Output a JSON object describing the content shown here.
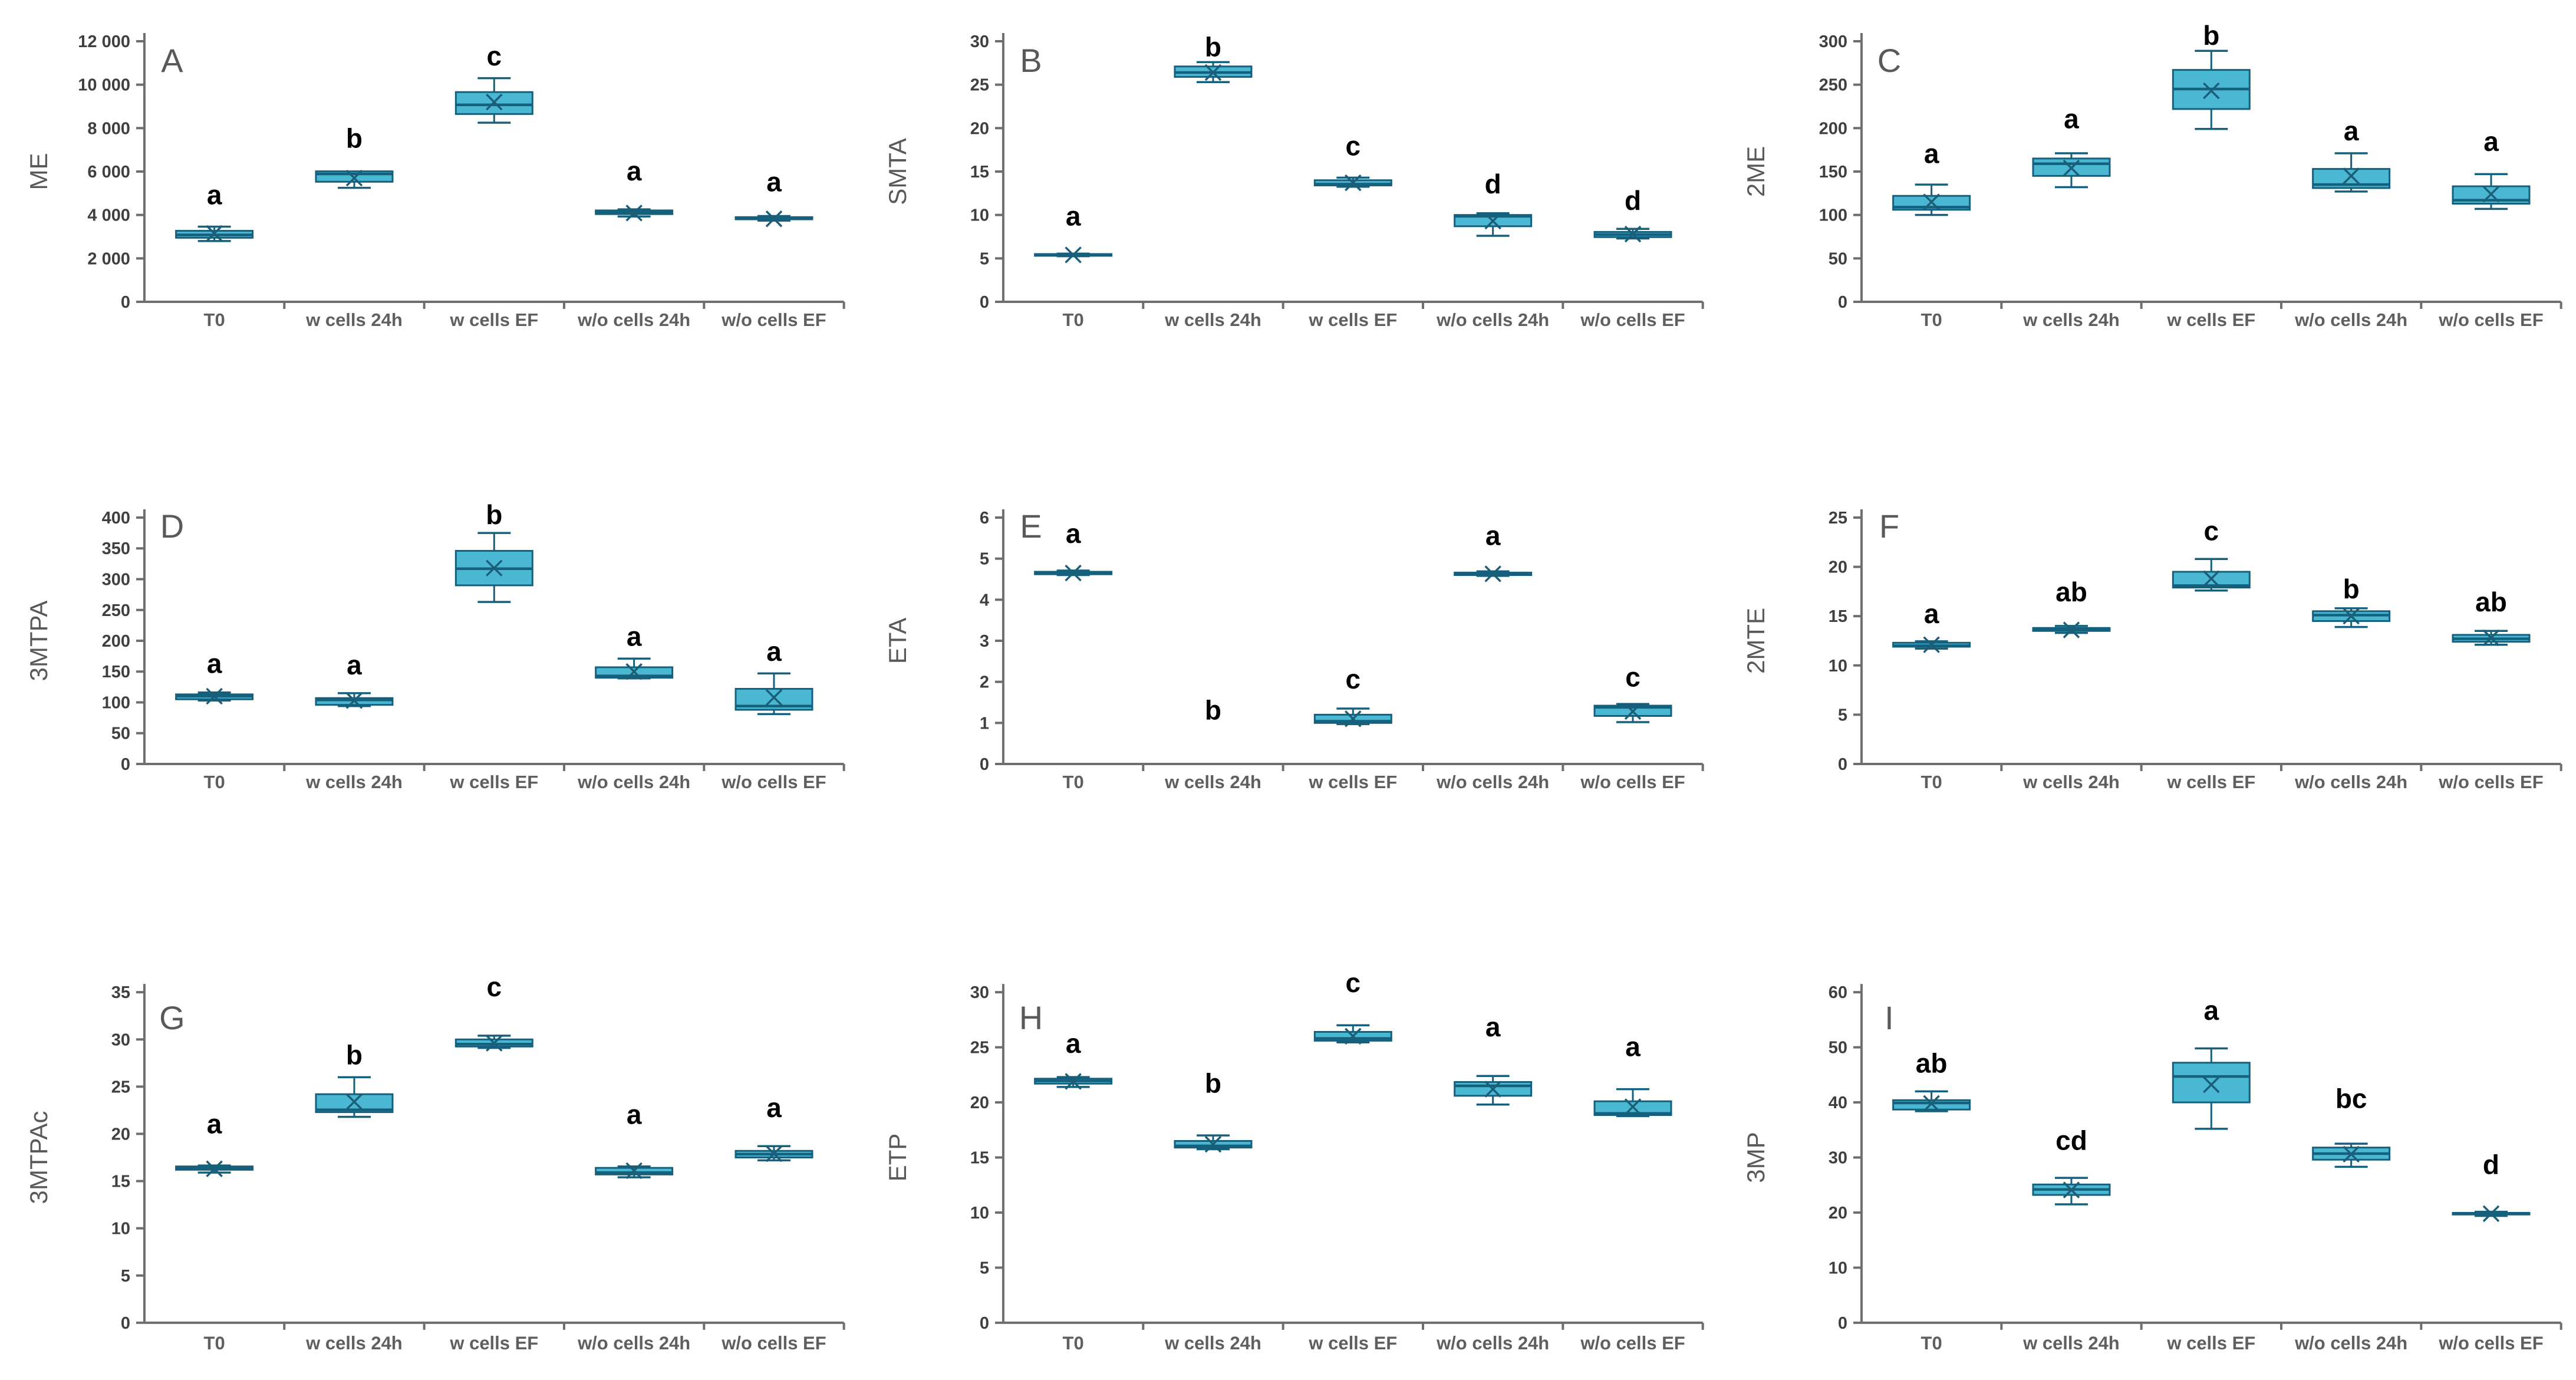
{
  "figure": {
    "background": "#ffffff",
    "box_fill": "#4BB8D3",
    "box_stroke": "#15607C",
    "median_color": "#15607C",
    "mean_marker_color": "#1A5E78",
    "axis_color": "#6E6E6E",
    "tick_label_color": "#3F3F3F",
    "category_label_color": "#5F5F5F",
    "panel_letter_color": "#595959",
    "ylabel_color": "#595959",
    "sig_letter_color": "#000000"
  },
  "categories": [
    "T0",
    "w cells 24h",
    "w cells EF",
    "w/o cells 24h",
    "w/o cells EF"
  ],
  "chart_data": [
    {
      "type": "box",
      "panel": "A",
      "ylabel": "ME",
      "ymin": 0,
      "ymax": 12000,
      "ystep": 2000,
      "ytick_labels": [
        "0",
        "2 000",
        "4 000",
        "6 000",
        "8 000",
        "10 000",
        "12 000"
      ],
      "categories": [
        "T0",
        "w cells 24h",
        "w cells EF",
        "w/o cells 24h",
        "w/o cells EF"
      ],
      "series": [
        {
          "category": "T0",
          "sig": "a",
          "sig_y": 4900,
          "whisker_low": 2800,
          "q1": 2950,
          "median": 3080,
          "q3": 3270,
          "whisker_high": 3460,
          "mean": 3150
        },
        {
          "category": "w cells 24h",
          "sig": "b",
          "sig_y": 7500,
          "whisker_low": 5250,
          "q1": 5530,
          "median": 5890,
          "q3": 6010,
          "whisker_high": 6010,
          "mean": 5700
        },
        {
          "category": "w cells EF",
          "sig": "c",
          "sig_y": 11300,
          "whisker_low": 8250,
          "q1": 8650,
          "median": 9070,
          "q3": 9660,
          "whisker_high": 10300,
          "mean": 9200
        },
        {
          "category": "w/o cells 24h",
          "sig": "a",
          "sig_y": 6000,
          "whisker_low": 3930,
          "q1": 4040,
          "median": 4130,
          "q3": 4210,
          "whisker_high": 4260,
          "mean": 4090
        },
        {
          "category": "w/o cells EF",
          "sig": "a",
          "sig_y": 5500,
          "whisker_low": 3740,
          "q1": 3800,
          "median": 3850,
          "q3": 3900,
          "whisker_high": 3950,
          "mean": 3820
        }
      ]
    },
    {
      "type": "box",
      "panel": "B",
      "ylabel": "SMTA",
      "ymin": 0,
      "ymax": 30,
      "ystep": 5,
      "ytick_labels": [
        "0",
        "5",
        "10",
        "15",
        "20",
        "25",
        "30"
      ],
      "categories": [
        "T0",
        "w cells 24h",
        "w cells EF",
        "w/o cells 24h",
        "w/o cells EF"
      ],
      "series": [
        {
          "category": "T0",
          "sig": "a",
          "sig_y": 9.8,
          "whisker_low": 5.25,
          "q1": 5.3,
          "median": 5.4,
          "q3": 5.5,
          "whisker_high": 5.55,
          "mean": 5.4
        },
        {
          "category": "w cells 24h",
          "sig": "b",
          "sig_y": 29.3,
          "whisker_low": 25.3,
          "q1": 25.9,
          "median": 26.4,
          "q3": 27.1,
          "whisker_high": 27.6,
          "mean": 26.4
        },
        {
          "category": "w cells EF",
          "sig": "c",
          "sig_y": 17.9,
          "whisker_low": 13.25,
          "q1": 13.4,
          "median": 13.55,
          "q3": 14.0,
          "whisker_high": 14.3,
          "mean": 13.7
        },
        {
          "category": "w/o cells 24h",
          "sig": "d",
          "sig_y": 13.5,
          "whisker_low": 7.6,
          "q1": 8.7,
          "median": 9.85,
          "q3": 10.0,
          "whisker_high": 10.2,
          "mean": 9.3
        },
        {
          "category": "w/o cells EF",
          "sig": "d",
          "sig_y": 11.6,
          "whisker_low": 7.3,
          "q1": 7.45,
          "median": 7.75,
          "q3": 8.05,
          "whisker_high": 8.4,
          "mean": 7.8
        }
      ]
    },
    {
      "type": "box",
      "panel": "C",
      "ylabel": "2ME",
      "ymin": 0,
      "ymax": 300,
      "ystep": 50,
      "ytick_labels": [
        "0",
        "50",
        "100",
        "150",
        "200",
        "250",
        "300"
      ],
      "categories": [
        "T0",
        "w cells 24h",
        "w cells EF",
        "w/o cells 24h",
        "w/o cells EF"
      ],
      "series": [
        {
          "category": "T0",
          "sig": "a",
          "sig_y": 170,
          "whisker_low": 100,
          "q1": 106,
          "median": 109,
          "q3": 122,
          "whisker_high": 135,
          "mean": 115
        },
        {
          "category": "w cells 24h",
          "sig": "a",
          "sig_y": 210,
          "whisker_low": 132,
          "q1": 145,
          "median": 159,
          "q3": 165,
          "whisker_high": 171,
          "mean": 154
        },
        {
          "category": "w cells EF",
          "sig": "b",
          "sig_y": 306,
          "whisker_low": 199,
          "q1": 222,
          "median": 245,
          "q3": 267,
          "whisker_high": 289,
          "mean": 243
        },
        {
          "category": "w/o cells 24h",
          "sig": "a",
          "sig_y": 196,
          "whisker_low": 127,
          "q1": 131,
          "median": 135,
          "q3": 153,
          "whisker_high": 171,
          "mean": 145
        },
        {
          "category": "w/o cells EF",
          "sig": "a",
          "sig_y": 184,
          "whisker_low": 107,
          "q1": 113,
          "median": 117,
          "q3": 133,
          "whisker_high": 147,
          "mean": 124
        }
      ]
    },
    {
      "type": "box",
      "panel": "D",
      "ylabel": "3MTPA",
      "ymin": 0,
      "ymax": 400,
      "ystep": 50,
      "ytick_labels": [
        "0",
        "50",
        "100",
        "150",
        "200",
        "250",
        "300",
        "350",
        "400"
      ],
      "categories": [
        "T0",
        "w cells 24h",
        "w cells EF",
        "w/o cells 24h",
        "w/o cells EF"
      ],
      "series": [
        {
          "category": "T0",
          "sig": "a",
          "sig_y": 162,
          "whisker_low": 103,
          "q1": 105,
          "median": 110,
          "q3": 113,
          "whisker_high": 116,
          "mean": 110
        },
        {
          "category": "w cells 24h",
          "sig": "a",
          "sig_y": 160,
          "whisker_low": 94,
          "q1": 96,
          "median": 104,
          "q3": 107,
          "whisker_high": 115,
          "mean": 103
        },
        {
          "category": "w cells EF",
          "sig": "b",
          "sig_y": 404,
          "whisker_low": 263,
          "q1": 290,
          "median": 317,
          "q3": 346,
          "whisker_high": 375,
          "mean": 318
        },
        {
          "category": "w/o cells 24h",
          "sig": "a",
          "sig_y": 206,
          "whisker_low": 139,
          "q1": 140,
          "median": 143,
          "q3": 157,
          "whisker_high": 171,
          "mean": 150
        },
        {
          "category": "w/o cells EF",
          "sig": "a",
          "sig_y": 182,
          "whisker_low": 81,
          "q1": 88,
          "median": 94,
          "q3": 122,
          "whisker_high": 147,
          "mean": 108
        }
      ]
    },
    {
      "type": "box",
      "panel": "E",
      "ylabel": "ETA",
      "ymin": 0,
      "ymax": 6,
      "ystep": 1,
      "ytick_labels": [
        "0",
        "1",
        "2",
        "3",
        "4",
        "5",
        "6"
      ],
      "categories": [
        "T0",
        "w cells 24h",
        "w cells EF",
        "w/o cells 24h",
        "w/o cells EF"
      ],
      "series": [
        {
          "category": "T0",
          "sig": "a",
          "sig_y": 5.6,
          "whisker_low": 4.6,
          "q1": 4.62,
          "median": 4.65,
          "q3": 4.68,
          "whisker_high": 4.71,
          "mean": 4.65
        },
        {
          "category": "w cells 24h",
          "sig": "b",
          "sig_y": 1.3,
          "hidden": true,
          "whisker_low": 0,
          "q1": 0,
          "median": 0,
          "q3": 0,
          "whisker_high": 0,
          "mean": 0
        },
        {
          "category": "w cells EF",
          "sig": "c",
          "sig_y": 2.05,
          "whisker_low": 0.97,
          "q1": 1.0,
          "median": 1.04,
          "q3": 1.2,
          "whisker_high": 1.35,
          "mean": 1.1
        },
        {
          "category": "w/o cells 24h",
          "sig": "a",
          "sig_y": 5.55,
          "whisker_low": 4.58,
          "q1": 4.6,
          "median": 4.63,
          "q3": 4.66,
          "whisker_high": 4.69,
          "mean": 4.63
        },
        {
          "category": "w/o cells EF",
          "sig": "c",
          "sig_y": 2.1,
          "whisker_low": 1.02,
          "q1": 1.17,
          "median": 1.38,
          "q3": 1.42,
          "whisker_high": 1.46,
          "mean": 1.28
        }
      ]
    },
    {
      "type": "box",
      "panel": "F",
      "ylabel": "2MTE",
      "ymin": 0,
      "ymax": 25,
      "ystep": 5,
      "ytick_labels": [
        "0",
        "5",
        "10",
        "15",
        "20",
        "25"
      ],
      "categories": [
        "T0",
        "w cells 24h",
        "w cells EF",
        "w/o cells 24h",
        "w/o cells EF"
      ],
      "series": [
        {
          "category": "T0",
          "sig": "a",
          "sig_y": 15.2,
          "whisker_low": 11.7,
          "q1": 11.9,
          "median": 12.0,
          "q3": 12.3,
          "whisker_high": 12.45,
          "mean": 12.1
        },
        {
          "category": "w cells 24h",
          "sig": "ab",
          "sig_y": 17.4,
          "whisker_low": 13.3,
          "q1": 13.5,
          "median": 13.7,
          "q3": 13.8,
          "whisker_high": 14.0,
          "mean": 13.6
        },
        {
          "category": "w cells EF",
          "sig": "c",
          "sig_y": 23.6,
          "whisker_low": 17.6,
          "q1": 17.9,
          "median": 18.1,
          "q3": 19.5,
          "whisker_high": 20.8,
          "mean": 18.8
        },
        {
          "category": "w/o cells 24h",
          "sig": "b",
          "sig_y": 17.7,
          "whisker_low": 13.9,
          "q1": 14.5,
          "median": 15.1,
          "q3": 15.5,
          "whisker_high": 15.8,
          "mean": 15.0
        },
        {
          "category": "w/o cells EF",
          "sig": "ab",
          "sig_y": 16.4,
          "whisker_low": 12.1,
          "q1": 12.4,
          "median": 12.7,
          "q3": 13.1,
          "whisker_high": 13.5,
          "mean": 12.8
        }
      ]
    },
    {
      "type": "box",
      "panel": "G",
      "ylabel": "3MTPAc",
      "ymin": 0,
      "ymax": 35,
      "ystep": 5,
      "ytick_labels": [
        "0",
        "5",
        "10",
        "15",
        "20",
        "25",
        "30",
        "35"
      ],
      "categories": [
        "T0",
        "w cells 24h",
        "w cells EF",
        "w/o cells 24h",
        "w/o cells EF"
      ],
      "series": [
        {
          "category": "T0",
          "sig": "a",
          "sig_y": 21.0,
          "whisker_low": 15.9,
          "q1": 16.2,
          "median": 16.35,
          "q3": 16.55,
          "whisker_high": 16.65,
          "mean": 16.3
        },
        {
          "category": "w cells 24h",
          "sig": "b",
          "sig_y": 28.3,
          "whisker_low": 21.8,
          "q1": 22.3,
          "median": 22.55,
          "q3": 24.2,
          "whisker_high": 26.0,
          "mean": 23.4
        },
        {
          "category": "w cells EF",
          "sig": "c",
          "sig_y": 35.5,
          "whisker_low": 29.1,
          "q1": 29.25,
          "median": 29.5,
          "q3": 30.0,
          "whisker_high": 30.4,
          "mean": 29.6
        },
        {
          "category": "w/o cells 24h",
          "sig": "a",
          "sig_y": 22.0,
          "whisker_low": 15.4,
          "q1": 15.7,
          "median": 15.9,
          "q3": 16.4,
          "whisker_high": 16.55,
          "mean": 16.1
        },
        {
          "category": "w/o cells EF",
          "sig": "a",
          "sig_y": 22.7,
          "whisker_low": 17.2,
          "q1": 17.5,
          "median": 17.85,
          "q3": 18.2,
          "whisker_high": 18.7,
          "mean": 17.9
        }
      ]
    },
    {
      "type": "box",
      "panel": "H",
      "ylabel": "ETP",
      "ymin": 0,
      "ymax": 30,
      "ystep": 5,
      "ytick_labels": [
        "0",
        "5",
        "10",
        "15",
        "20",
        "25",
        "30"
      ],
      "categories": [
        "T0",
        "w cells 24h",
        "w cells EF",
        "w/o cells 24h",
        "w/o cells EF"
      ],
      "series": [
        {
          "category": "T0",
          "sig": "a",
          "sig_y": 25.3,
          "whisker_low": 21.4,
          "q1": 21.7,
          "median": 21.95,
          "q3": 22.15,
          "whisker_high": 22.3,
          "mean": 21.9
        },
        {
          "category": "w cells 24h",
          "sig": "b",
          "sig_y": 21.7,
          "whisker_low": 15.75,
          "q1": 15.9,
          "median": 16.05,
          "q3": 16.5,
          "whisker_high": 17.0,
          "mean": 16.2
        },
        {
          "category": "w cells EF",
          "sig": "c",
          "sig_y": 30.8,
          "whisker_low": 25.45,
          "q1": 25.6,
          "median": 25.8,
          "q3": 26.4,
          "whisker_high": 27.0,
          "mean": 26.0
        },
        {
          "category": "w/o cells 24h",
          "sig": "a",
          "sig_y": 26.8,
          "whisker_low": 19.8,
          "q1": 20.6,
          "median": 21.5,
          "q3": 21.85,
          "whisker_high": 22.4,
          "mean": 21.2
        },
        {
          "category": "w/o cells EF",
          "sig": "a",
          "sig_y": 25.0,
          "whisker_low": 18.75,
          "q1": 18.85,
          "median": 19.0,
          "q3": 20.1,
          "whisker_high": 21.2,
          "mean": 19.6
        }
      ]
    },
    {
      "type": "box",
      "panel": "I",
      "ylabel": "3MP",
      "ymin": 0,
      "ymax": 60,
      "ystep": 10,
      "ytick_labels": [
        "0",
        "10",
        "20",
        "30",
        "40",
        "50",
        "60"
      ],
      "categories": [
        "T0",
        "w cells 24h",
        "w cells EF",
        "w/o cells 24h",
        "w/o cells EF"
      ],
      "series": [
        {
          "category": "T0",
          "sig": "ab",
          "sig_y": 47.0,
          "whisker_low": 38.4,
          "q1": 38.7,
          "median": 39.9,
          "q3": 40.4,
          "whisker_high": 42.0,
          "mean": 39.8
        },
        {
          "category": "w cells 24h",
          "sig": "cd",
          "sig_y": 33.0,
          "whisker_low": 21.5,
          "q1": 23.2,
          "median": 24.2,
          "q3": 25.1,
          "whisker_high": 26.3,
          "mean": 24.1
        },
        {
          "category": "w cells EF",
          "sig": "a",
          "sig_y": 56.6,
          "whisker_low": 35.2,
          "q1": 40.0,
          "median": 44.7,
          "q3": 47.2,
          "whisker_high": 49.8,
          "mean": 43.2
        },
        {
          "category": "w/o cells 24h",
          "sig": "bc",
          "sig_y": 40.6,
          "whisker_low": 28.3,
          "q1": 29.6,
          "median": 30.7,
          "q3": 31.8,
          "whisker_high": 32.5,
          "mean": 30.6
        },
        {
          "category": "w/o cells EF",
          "sig": "d",
          "sig_y": 28.6,
          "whisker_low": 19.4,
          "q1": 19.65,
          "median": 19.8,
          "q3": 19.95,
          "whisker_high": 20.15,
          "mean": 19.8
        }
      ]
    }
  ]
}
